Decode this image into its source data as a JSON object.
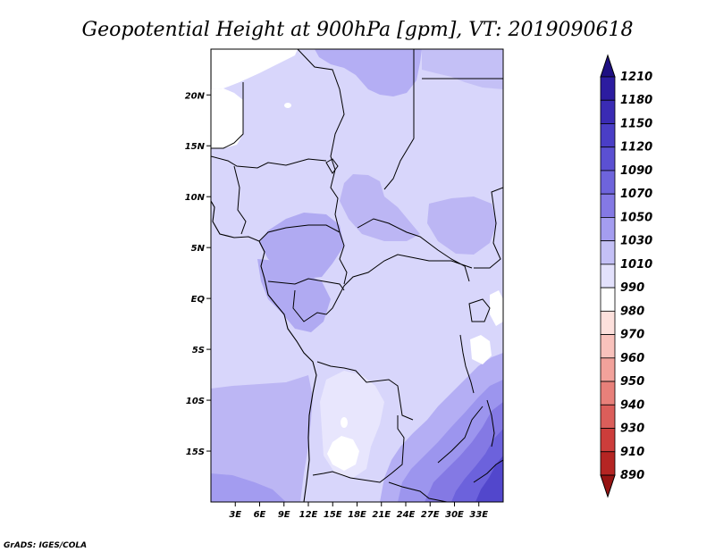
{
  "title": "Geopotential Height at 900hPa [gpm], VT: 2019090618",
  "credit": "GrADS: IGES/COLA",
  "map": {
    "x_labels": [
      "3E",
      "6E",
      "9E",
      "12E",
      "15E",
      "18E",
      "21E",
      "24E",
      "27E",
      "30E",
      "33E"
    ],
    "y_labels": [
      "20N",
      "15N",
      "10N",
      "5N",
      "EQ",
      "5S",
      "10S",
      "15S"
    ],
    "lon_range": [
      0,
      36
    ],
    "lat_range": [
      -20,
      24.5
    ]
  },
  "colorbar": {
    "levels": [
      "1210",
      "1180",
      "1150",
      "1120",
      "1090",
      "1070",
      "1050",
      "1030",
      "1010",
      "990",
      "980",
      "970",
      "960",
      "950",
      "940",
      "930",
      "910",
      "890"
    ],
    "colors": [
      "#1e0f82",
      "#2c1ca0",
      "#3a2bb4",
      "#4a3ec6",
      "#5b50d2",
      "#6e64dc",
      "#8479e4",
      "#a49df0",
      "#c4c0f6",
      "#e3e1fc",
      "#ffffff",
      "#fde0dc",
      "#f9c2bc",
      "#f2a29b",
      "#e8807a",
      "#db5e5a",
      "#cc3d3b",
      "#b52523",
      "#961413"
    ]
  }
}
